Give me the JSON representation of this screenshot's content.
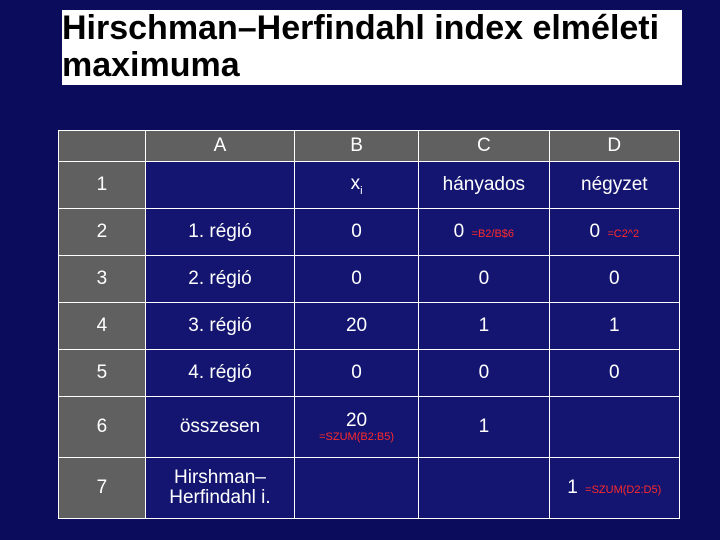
{
  "colors": {
    "slide_bg": "#0b0d5c",
    "title_bg": "#ffffff",
    "title_fg": "#000000",
    "header_bg": "#606060",
    "body_bg": "#131571",
    "border": "#ffffff",
    "text": "#ffffff",
    "formula": "#ff2a2a"
  },
  "title": "Hirschman–Herfindahl index elméleti maximuma",
  "table": {
    "col_widths_pct": [
      14,
      24,
      20,
      21,
      21
    ],
    "header": [
      "",
      "A",
      "B",
      "C",
      "D"
    ],
    "rows": [
      {
        "label": "1",
        "A": "",
        "B_html": "x<span class=\"sub\">i</span>",
        "C": "hányados",
        "D": "négyzet"
      },
      {
        "label": "2",
        "A": "1. régió",
        "B": "0",
        "C_html": "0 <span class=\"formula\">=B2/B$6</span>",
        "D_html": "0 <span class=\"formula\">=C2^2</span>"
      },
      {
        "label": "3",
        "A": "2. régió",
        "B": "0",
        "C": "0",
        "D": "0"
      },
      {
        "label": "4",
        "A": "3. régió",
        "B": "20",
        "C": "1",
        "D": "1"
      },
      {
        "label": "5",
        "A": "4. régió",
        "B": "0",
        "C": "0",
        "D": "0"
      },
      {
        "label": "6",
        "A": "összesen",
        "B_html": "20<span class=\"formula-block\">=SZUM(B2:B5)</span>",
        "C": "1",
        "D": ""
      },
      {
        "label": "7",
        "A_html": "Hirshman–<br>Herfindahl i.",
        "B": "",
        "C": "",
        "D_html": "1 <span class=\"formula\">=SZUM(D2:D5)</span>"
      }
    ]
  }
}
